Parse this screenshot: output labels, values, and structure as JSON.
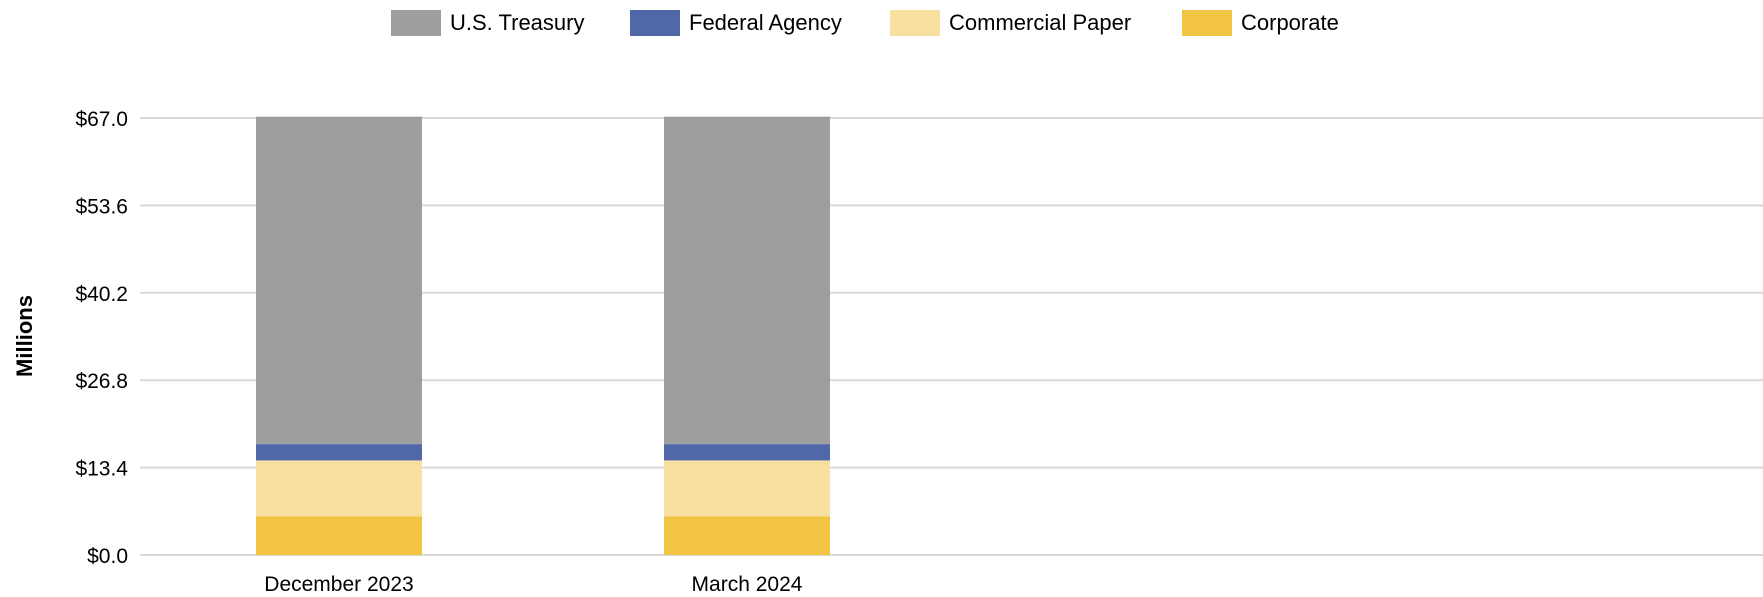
{
  "chart_data": {
    "type": "bar",
    "stacked": true,
    "categories": [
      "December 2023",
      "March 2024"
    ],
    "series": [
      {
        "name": "Corporate",
        "values": [
          5.9,
          5.9
        ],
        "color": "#f2c443"
      },
      {
        "name": "Commercial Paper",
        "values": [
          8.6,
          8.6
        ],
        "color": "#f8e0a1"
      },
      {
        "name": "Federal Agency",
        "values": [
          2.5,
          2.5
        ],
        "color": "#5068a8"
      },
      {
        "name": "U.S. Treasury",
        "values": [
          50.2,
          50.2
        ],
        "color": "#9e9e9e"
      }
    ],
    "legend": {
      "position": "top",
      "entries": [
        "U.S. Treasury",
        "Federal Agency",
        "Commercial Paper",
        "Corporate"
      ]
    },
    "title": "",
    "xlabel": "",
    "ylabel": "Millions",
    "ylim": [
      0,
      67.0
    ],
    "yticks": [
      "$0.0",
      "$13.4",
      "$26.8",
      "$40.2",
      "$53.6",
      "$67.0"
    ],
    "ytick_values": [
      0,
      13.4,
      26.8,
      40.2,
      53.6,
      67.0
    ],
    "grid": true,
    "gridline_color": "#d9d9d9"
  }
}
